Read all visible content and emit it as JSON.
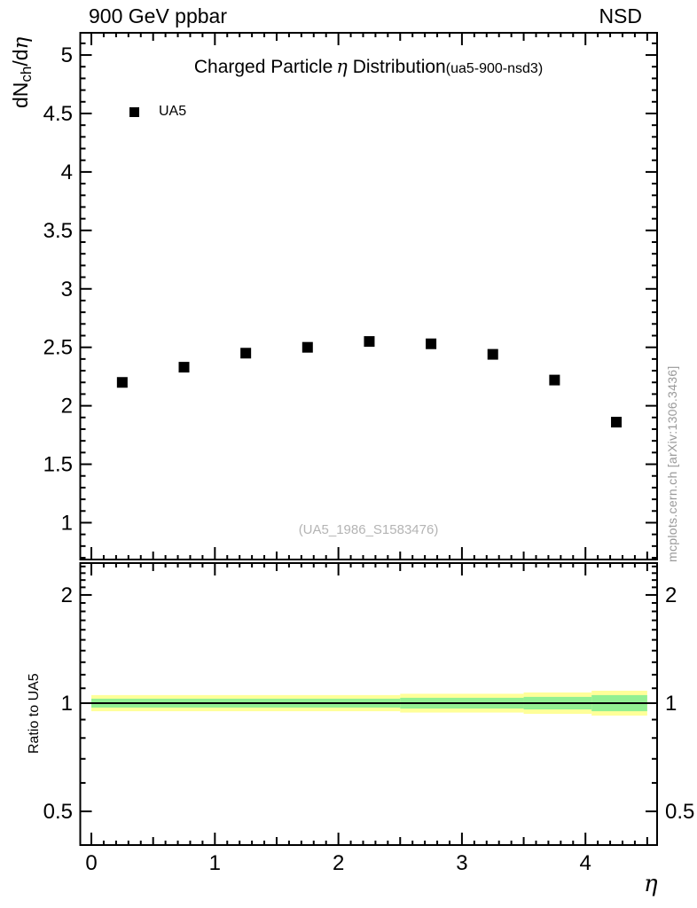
{
  "header": {
    "left": "900 GeV ppbar",
    "right": "NSD"
  },
  "main_panel": {
    "title": {
      "part1": "Charged Particle",
      "eta": "η",
      "part2": " Distribution",
      "subtitle": "(ua5-900-nsd3)"
    },
    "ylabel": {
      "p1": "dN",
      "sub": "ch",
      "p2": "/d",
      "eta": "η"
    },
    "legend_label": "UA5",
    "watermark": "(UA5_1986_S1583476)"
  },
  "ratio_panel": {
    "ylabel": "Ratio to UA5"
  },
  "xlabel_eta": "η",
  "side_note": "mcplots.cern.ch [arXiv:1306.3436]",
  "colors": {
    "marker": "#000000",
    "band_total": "#ffff99",
    "band_stat": "#92f092",
    "reference_line": "#000000",
    "frame": "#000000",
    "gray_note": "#999999",
    "gray_watermark": "#b4b4b4"
  },
  "chart_data": [
    {
      "id": "main",
      "type": "scatter",
      "title": "Charged Particle η Distribution (ua5-900-nsd3)",
      "xlabel": "η",
      "ylabel": "dN_ch/dη",
      "grid": false,
      "legend_position": "top-left",
      "xlim": [
        -0.09,
        4.58
      ],
      "ylim": [
        0.69,
        5.19
      ],
      "xticks": {
        "major_values": [
          0,
          1,
          2,
          3,
          4
        ],
        "major_labels": [
          "0",
          "1",
          "2",
          "3",
          "4"
        ],
        "medium_step": 0.5,
        "minor_step": 0.1,
        "minor_min": 0,
        "minor_max": 4.5
      },
      "yticks": {
        "labeled_values": [
          1,
          1.5,
          2,
          2.5,
          3,
          3.5,
          4,
          4.5,
          5
        ],
        "labels": [
          "1",
          "1.5",
          "2",
          "2.5",
          "3",
          "3.5",
          "4",
          "4.5",
          "5"
        ],
        "minor_step": 0.1,
        "minor_min": 0.7,
        "minor_max": 5.1
      },
      "series": [
        {
          "name": "UA5",
          "marker": "filled-square",
          "color": "#000000",
          "x": [
            0.25,
            0.75,
            1.25,
            1.75,
            2.25,
            2.75,
            3.25,
            3.75,
            4.25
          ],
          "y": [
            2.2,
            2.33,
            2.45,
            2.5,
            2.55,
            2.53,
            2.44,
            2.22,
            1.86
          ]
        }
      ]
    },
    {
      "id": "ratio",
      "type": "area",
      "ylabel": "Ratio to UA5",
      "yscale": "log",
      "xlim": [
        -0.09,
        4.58
      ],
      "ylim": [
        0.4,
        2.45
      ],
      "reference_line": 1.0,
      "yticks": {
        "labeled_values": [
          0.5,
          1,
          2
        ],
        "labels": [
          "0.5",
          "1",
          "2"
        ],
        "minor_values": [
          0.5,
          0.6,
          0.7,
          0.8,
          0.9,
          1,
          1.1,
          1.2,
          1.3,
          1.4,
          1.5,
          1.6,
          1.7,
          1.8,
          1.9,
          2,
          2.1,
          2.2,
          2.3,
          2.4
        ]
      },
      "band_segments": [
        {
          "x0": 0.0,
          "x1": 2.5,
          "total_rel": 0.053,
          "stat_rel": 0.029
        },
        {
          "x0": 2.5,
          "x1": 3.5,
          "total_rel": 0.062,
          "stat_rel": 0.035
        },
        {
          "x0": 3.5,
          "x1": 4.05,
          "total_rel": 0.071,
          "stat_rel": 0.041
        },
        {
          "x0": 4.05,
          "x1": 4.5,
          "total_rel": 0.083,
          "stat_rel": 0.053
        }
      ]
    }
  ]
}
